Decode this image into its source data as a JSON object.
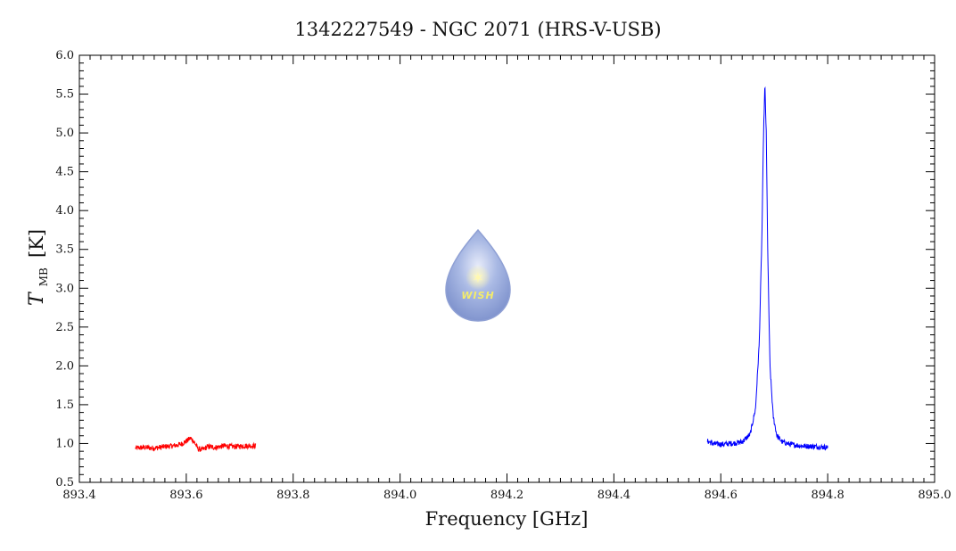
{
  "chart_data": {
    "type": "line",
    "title": "1342227549 - NGC 2071 (HRS-V-USB)",
    "xlabel": "Frequency [GHz]",
    "ylabel": {
      "symbol": "T",
      "subscript": "MB",
      "unit": "[K]"
    },
    "xlim": [
      893.4,
      895.0
    ],
    "ylim": [
      0.5,
      6.0
    ],
    "x_ticks": [
      "893.4",
      "893.6",
      "893.8",
      "894.0",
      "894.2",
      "894.4",
      "894.6",
      "894.8",
      "895.0"
    ],
    "y_ticks": [
      "0.5",
      "1.0",
      "1.5",
      "2.0",
      "2.5",
      "3.0",
      "3.5",
      "4.0",
      "4.5",
      "5.0",
      "5.5",
      "6.0"
    ],
    "grid": false,
    "series": [
      {
        "color": "#ff0000",
        "x": [
          893.505,
          893.52,
          893.54,
          893.56,
          893.575,
          893.59,
          893.6,
          893.608,
          893.615,
          893.622,
          893.63,
          893.64,
          893.655,
          893.67,
          893.69,
          893.71,
          893.73
        ],
        "y": [
          0.94,
          0.95,
          0.94,
          0.96,
          0.97,
          0.99,
          1.03,
          1.07,
          1.02,
          0.93,
          0.92,
          0.96,
          0.95,
          0.97,
          0.96,
          0.97,
          0.97
        ],
        "noise": 0.035
      },
      {
        "color": "#0000ff",
        "x": [
          894.575,
          894.585,
          894.6,
          894.62,
          894.64,
          894.655,
          894.665,
          894.672,
          894.677,
          894.68,
          894.6825,
          894.685,
          894.688,
          894.692,
          894.698,
          894.705,
          894.715,
          894.73,
          894.75,
          894.78,
          894.8
        ],
        "y": [
          1.03,
          1.0,
          0.99,
          1.0,
          1.02,
          1.12,
          1.45,
          2.3,
          3.7,
          5.0,
          5.62,
          5.0,
          3.4,
          2.0,
          1.35,
          1.1,
          1.02,
          0.99,
          0.97,
          0.96,
          0.95
        ],
        "noise": 0.035
      }
    ],
    "watermark": {
      "text": "WISH",
      "icon": "water-drop-star-logo",
      "colors": {
        "drop_top": "#dfe5f6",
        "drop_mid": "#9fb1e0",
        "drop_bottom": "#7f93cc",
        "text": "#f4ec6a"
      }
    }
  }
}
